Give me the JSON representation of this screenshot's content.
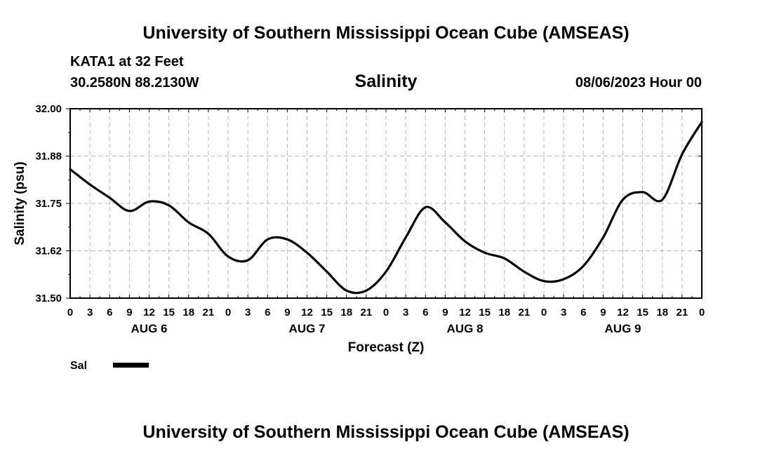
{
  "header": {
    "title_top": "University of Southern Mississippi Ocean Cube (AMSEAS)",
    "title_bottom": "University of Southern Mississippi Ocean Cube (AMSEAS)",
    "station": "KATA1 at 32 Feet",
    "coords": "30.2580N  88.2130W",
    "datetime": "08/06/2023 Hour 00"
  },
  "chart_data": {
    "type": "line",
    "title": "Salinity",
    "xlabel": "Forecast (Z)",
    "ylabel": "Salinity (psu)",
    "ylim": [
      31.5,
      32.0
    ],
    "xlim": [
      0,
      96
    ],
    "yticks": [
      31.5,
      31.625,
      31.75,
      31.875,
      32.0
    ],
    "ytick_labels": [
      "31.50",
      "31.62",
      "31.75",
      "31.88",
      "32.00"
    ],
    "xtick_labels": [
      "0",
      "3",
      "6",
      "9",
      "12",
      "15",
      "18",
      "21",
      "0",
      "3",
      "6",
      "9",
      "12",
      "15",
      "18",
      "21",
      "0",
      "3",
      "6",
      "9",
      "12",
      "15",
      "18",
      "21",
      "0",
      "3",
      "6",
      "9",
      "12",
      "15",
      "18",
      "21",
      "0"
    ],
    "day_labels": [
      {
        "label": "AUG 6",
        "hour": 12
      },
      {
        "label": "AUG 7",
        "hour": 36
      },
      {
        "label": "AUG 8",
        "hour": 60
      },
      {
        "label": "AUG 9",
        "hour": 84
      }
    ],
    "grid": true,
    "legend": [
      {
        "name": "Sal",
        "color": "#000000"
      }
    ],
    "series": [
      {
        "name": "Sal",
        "color": "#000000",
        "x": [
          0,
          3,
          6,
          9,
          12,
          15,
          18,
          21,
          24,
          27,
          30,
          33,
          36,
          39,
          42,
          45,
          48,
          51,
          54,
          57,
          60,
          63,
          66,
          69,
          72,
          75,
          78,
          81,
          84,
          87,
          90,
          93,
          96
        ],
        "values": [
          31.84,
          31.8,
          31.765,
          31.73,
          31.755,
          31.745,
          31.7,
          31.67,
          31.61,
          31.6,
          31.655,
          31.655,
          31.62,
          31.57,
          31.52,
          31.52,
          31.57,
          31.66,
          31.74,
          31.7,
          31.65,
          31.62,
          31.605,
          31.57,
          31.545,
          31.55,
          31.585,
          31.66,
          31.76,
          31.78,
          31.76,
          31.88,
          31.965
        ]
      }
    ]
  }
}
